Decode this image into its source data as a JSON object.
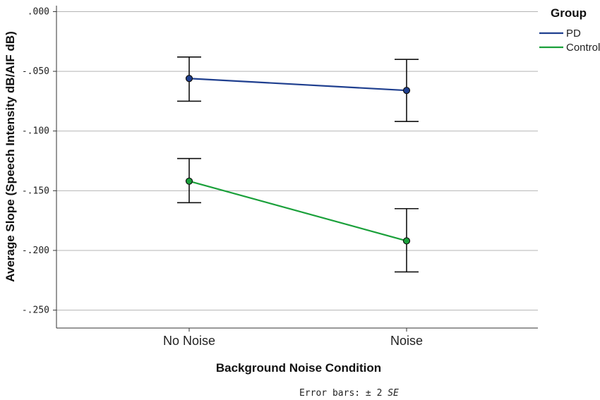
{
  "chart_data": {
    "type": "line",
    "xlabel": "Background Noise Condition",
    "ylabel": "Average Slope (Speech Intensity dB/AIF dB)",
    "categories": [
      "No Noise",
      "Noise"
    ],
    "ylim": [
      -0.265,
      0.005
    ],
    "yticks": [
      0.0,
      -0.05,
      -0.1,
      -0.15,
      -0.2,
      -0.25
    ],
    "ytick_labels": [
      ".000",
      "-.050",
      "-.100",
      "-.150",
      "-.200",
      "-.250"
    ],
    "grid": true,
    "legend": {
      "title": "Group",
      "placement": "top-right"
    },
    "series": [
      {
        "name": "PD",
        "color": "#1f3f8f",
        "values": [
          -0.056,
          -0.066
        ],
        "error_low": [
          -0.075,
          -0.092
        ],
        "error_high": [
          -0.038,
          -0.04
        ]
      },
      {
        "name": "Control",
        "color": "#1aa03a",
        "values": [
          -0.142,
          -0.192
        ],
        "error_low": [
          -0.16,
          -0.218
        ],
        "error_high": [
          -0.123,
          -0.165
        ]
      }
    ],
    "note": {
      "prefix": "Error bars: ± 2 ",
      "emphasis": "SE"
    }
  }
}
